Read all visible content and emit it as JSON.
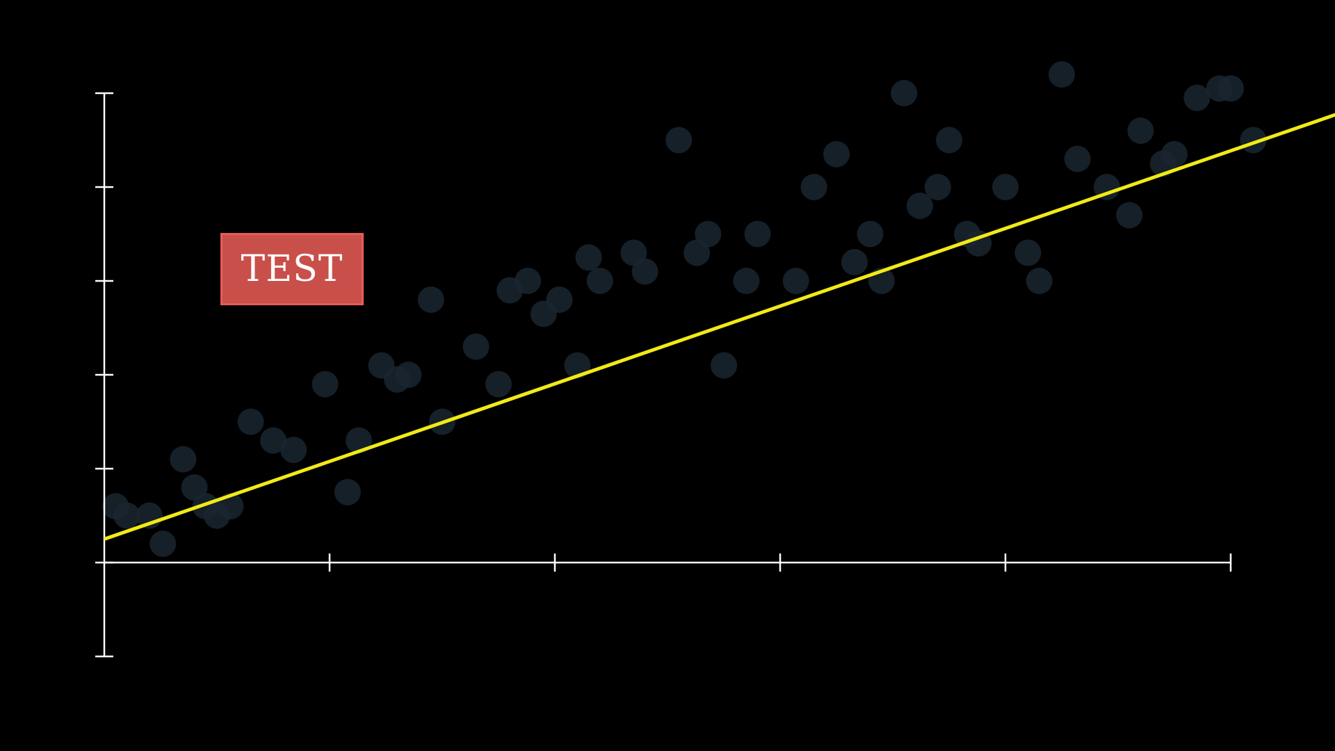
{
  "annotation": {
    "label": "TEST",
    "fill_color": "#c9504a",
    "border_color": "#e85c55"
  },
  "chart_data": {
    "type": "scatter",
    "title": "",
    "xlabel": "",
    "ylabel": "",
    "xlim": [
      0,
      5
    ],
    "ylim": [
      -1,
      5
    ],
    "x_ticks": [
      0,
      1,
      2,
      3,
      4,
      5
    ],
    "y_ticks": [
      -1,
      0,
      1,
      2,
      3,
      4,
      5
    ],
    "tick_labels_shown": false,
    "grid": false,
    "legend": "none",
    "colors": {
      "background": "#000000",
      "axes": "#ffffff",
      "points": "#1a2630",
      "trend_line": "#f2ea16"
    },
    "series": [
      {
        "kind": "points",
        "x": [
          0.05,
          0.1,
          0.2,
          0.26,
          0.35,
          0.4,
          0.45,
          0.5,
          0.56,
          0.65,
          0.75,
          0.84,
          0.98,
          1.08,
          1.13,
          1.23,
          1.3,
          1.35,
          1.45,
          1.5,
          1.65,
          1.75,
          1.8,
          1.88,
          1.95,
          2.02,
          2.1,
          2.15,
          2.2,
          2.35,
          2.4,
          2.55,
          2.63,
          2.68,
          2.75,
          2.85,
          2.9,
          3.07,
          3.15,
          3.25,
          3.33,
          3.4,
          3.45,
          3.55,
          3.62,
          3.7,
          3.75,
          3.83,
          3.88,
          4.0,
          4.1,
          4.15,
          4.25,
          4.32,
          4.45,
          4.55,
          4.6,
          4.7,
          4.75,
          4.85,
          4.95,
          5.0,
          5.1
        ],
        "y": [
          0.6,
          0.5,
          0.5,
          0.2,
          1.1,
          0.8,
          0.6,
          0.5,
          0.6,
          1.5,
          1.3,
          1.2,
          1.9,
          0.75,
          1.3,
          2.1,
          1.95,
          2.0,
          2.8,
          1.5,
          2.3,
          1.9,
          2.9,
          3.0,
          2.65,
          2.8,
          2.1,
          3.25,
          3.0,
          3.3,
          3.1,
          4.5,
          3.3,
          3.5,
          2.1,
          3.0,
          3.5,
          3.0,
          4.0,
          4.35,
          3.2,
          3.5,
          3.0,
          5.0,
          3.8,
          4.0,
          4.5,
          3.5,
          3.4,
          4.0,
          3.3,
          3.0,
          5.2,
          4.3,
          4.0,
          3.7,
          4.6,
          4.25,
          4.35,
          4.95,
          5.05,
          5.05,
          4.5
        ]
      },
      {
        "kind": "trend_line",
        "x": [
          0,
          5.5
        ],
        "y": [
          0.25,
          4.8
        ]
      }
    ]
  }
}
